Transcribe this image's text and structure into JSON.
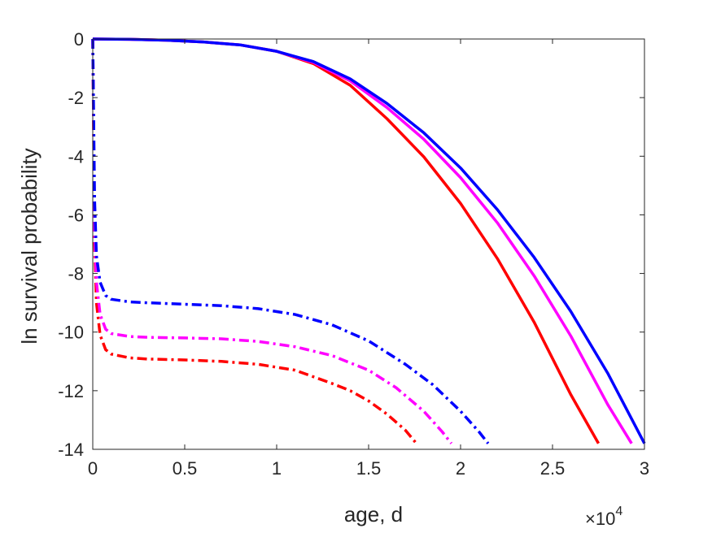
{
  "chart_data": {
    "type": "line",
    "title": "",
    "xlabel": "age, d",
    "ylabel": "ln survival probability",
    "x_multiplier_label": "×10",
    "x_multiplier_exponent": "4",
    "xlim": [
      0,
      30000
    ],
    "ylim": [
      -14,
      0
    ],
    "x_tick_labels": [
      "0",
      "0.5",
      "1",
      "1.5",
      "2",
      "2.5",
      "3"
    ],
    "x_tick_values": [
      0,
      5000,
      10000,
      15000,
      20000,
      25000,
      30000
    ],
    "y_tick_labels": [
      "0",
      "-2",
      "-4",
      "-6",
      "-8",
      "-10",
      "-12",
      "-14"
    ],
    "y_tick_values": [
      0,
      -2,
      -4,
      -6,
      -8,
      -10,
      -12,
      -14
    ],
    "grid": false,
    "box": true,
    "series": [
      {
        "color": "#ff0000",
        "style": "solid",
        "x": [
          0,
          2000,
          4000,
          6000,
          8000,
          10000,
          12000,
          14000,
          16000,
          18000,
          20000,
          22000,
          24000,
          26000,
          27500
        ],
        "y": [
          0,
          -0.01,
          -0.04,
          -0.1,
          -0.2,
          -0.42,
          -0.84,
          -1.58,
          -2.72,
          -4.02,
          -5.61,
          -7.49,
          -9.66,
          -12.14,
          -13.8
        ]
      },
      {
        "color": "#ff00ff",
        "style": "solid",
        "x": [
          0,
          2000,
          4000,
          6000,
          8000,
          10000,
          12000,
          14000,
          16000,
          18000,
          20000,
          22000,
          24000,
          26000,
          28000,
          29300
        ],
        "y": [
          0,
          -0.01,
          -0.04,
          -0.1,
          -0.2,
          -0.42,
          -0.8,
          -1.43,
          -2.34,
          -3.42,
          -4.73,
          -6.27,
          -8.08,
          -10.14,
          -12.47,
          -13.8
        ]
      },
      {
        "color": "#0000ff",
        "style": "solid",
        "x": [
          0,
          2000,
          4000,
          6000,
          8000,
          10000,
          12000,
          14000,
          16000,
          18000,
          20000,
          22000,
          24000,
          26000,
          28000,
          30000
        ],
        "y": [
          0,
          -0.01,
          -0.04,
          -0.1,
          -0.2,
          -0.42,
          -0.77,
          -1.36,
          -2.2,
          -3.2,
          -4.4,
          -5.82,
          -7.45,
          -9.3,
          -11.4,
          -13.8
        ]
      },
      {
        "color": "#ff0000",
        "style": "dashdot",
        "x": [
          0,
          100,
          200,
          400,
          700,
          1000,
          2000,
          3000,
          5000,
          7000,
          9000,
          11000,
          13000,
          14000,
          15000,
          16000,
          17000,
          17600
        ],
        "y": [
          0,
          -7.0,
          -9.0,
          -10.1,
          -10.6,
          -10.75,
          -10.88,
          -10.92,
          -10.95,
          -11.0,
          -11.1,
          -11.3,
          -11.75,
          -12.0,
          -12.35,
          -12.8,
          -13.35,
          -13.8
        ]
      },
      {
        "color": "#ff00ff",
        "style": "dashdot",
        "x": [
          0,
          100,
          200,
          400,
          700,
          1000,
          2000,
          3000,
          5000,
          7000,
          9000,
          11000,
          13000,
          15000,
          16500,
          18000,
          19000,
          19500
        ],
        "y": [
          0,
          -6.5,
          -8.3,
          -9.4,
          -9.9,
          -10.05,
          -10.15,
          -10.18,
          -10.2,
          -10.23,
          -10.32,
          -10.5,
          -10.8,
          -11.3,
          -11.9,
          -12.7,
          -13.4,
          -13.8
        ]
      },
      {
        "color": "#0000ff",
        "style": "dashdot",
        "x": [
          0,
          100,
          200,
          400,
          700,
          1000,
          2000,
          3000,
          5000,
          7000,
          9000,
          11000,
          13000,
          15000,
          17000,
          18500,
          20000,
          21000,
          21500
        ],
        "y": [
          0,
          -5.5,
          -7.4,
          -8.3,
          -8.75,
          -8.88,
          -8.97,
          -9.0,
          -9.05,
          -9.1,
          -9.2,
          -9.4,
          -9.75,
          -10.3,
          -11.1,
          -11.8,
          -12.7,
          -13.4,
          -13.8
        ]
      }
    ]
  }
}
